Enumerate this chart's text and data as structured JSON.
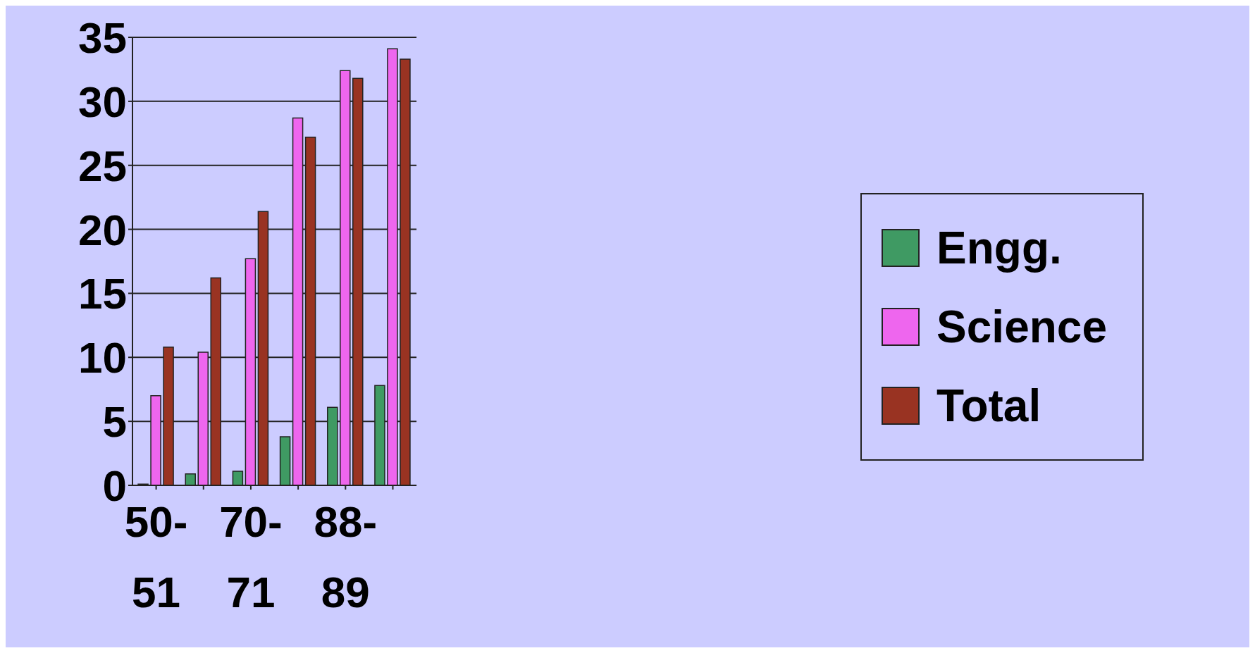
{
  "chart_data": {
    "type": "bar",
    "categories": [
      "50-51",
      null,
      "70-71",
      null,
      "88-89",
      null
    ],
    "series": [
      {
        "name": "Engg.",
        "color": "#3f9a63",
        "values": [
          0.1,
          0.9,
          1.1,
          3.8,
          6.1,
          7.8
        ]
      },
      {
        "name": "Science",
        "color": "#ee66ee",
        "values": [
          7.0,
          10.4,
          17.7,
          28.7,
          32.4,
          34.1
        ]
      },
      {
        "name": "Total",
        "color": "#993322",
        "values": [
          10.8,
          16.2,
          21.4,
          27.2,
          31.8,
          33.3
        ]
      }
    ],
    "ylim": [
      0,
      35
    ],
    "yticks": [
      0,
      5,
      10,
      15,
      20,
      25,
      30,
      35
    ],
    "grid": "y",
    "legend": "right"
  }
}
